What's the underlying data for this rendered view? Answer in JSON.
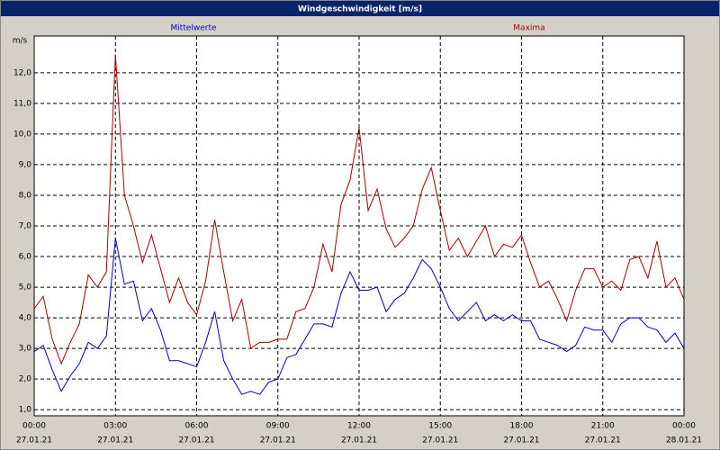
{
  "chart_data": {
    "type": "line",
    "title": "Windgeschwindigkeit [m/s]",
    "y_unit": "m/s",
    "x": [
      0,
      20,
      40,
      60,
      80,
      100,
      120,
      140,
      160,
      180,
      200,
      220,
      240,
      260,
      280,
      300,
      320,
      340,
      360,
      380,
      400,
      420,
      440,
      460,
      480,
      500,
      520,
      540,
      560,
      580,
      600,
      620,
      640,
      660,
      680,
      700,
      720,
      740,
      760,
      780,
      800,
      820,
      840,
      860,
      880,
      900,
      920,
      940,
      960,
      980,
      1000,
      1020,
      1040,
      1060,
      1080,
      1100,
      1120,
      1140,
      1160,
      1180,
      1200,
      1220,
      1240,
      1260,
      1280,
      1300,
      1320,
      1340,
      1360,
      1380,
      1400,
      1420,
      1440
    ],
    "series": [
      {
        "name": "Mittelwerte",
        "color": "#0000cc",
        "values": [
          2.9,
          3.1,
          2.3,
          1.6,
          2.1,
          2.5,
          3.2,
          3.0,
          3.4,
          6.6,
          5.1,
          5.2,
          3.9,
          4.3,
          3.6,
          2.6,
          2.6,
          2.5,
          2.4,
          3.2,
          4.2,
          2.6,
          2.0,
          1.5,
          1.6,
          1.5,
          1.9,
          2.0,
          2.7,
          2.8,
          3.3,
          3.8,
          3.8,
          3.7,
          4.8,
          5.5,
          4.9,
          4.9,
          5.0,
          4.2,
          4.6,
          4.8,
          5.3,
          5.9,
          5.6,
          5.0,
          4.3,
          3.9,
          4.2,
          4.5,
          3.9,
          4.1,
          3.9,
          4.1,
          3.9,
          3.9,
          3.3,
          3.2,
          3.1,
          2.9,
          3.1,
          3.7,
          3.6,
          3.6,
          3.2,
          3.8,
          4.0,
          4.0,
          3.7,
          3.6,
          3.2,
          3.5,
          3.0
        ]
      },
      {
        "name": "Maxima",
        "color": "#aa0000",
        "values": [
          4.3,
          4.7,
          3.3,
          2.5,
          3.2,
          3.8,
          5.4,
          5.0,
          5.5,
          12.6,
          8.0,
          7.0,
          5.8,
          6.7,
          5.6,
          4.5,
          5.3,
          4.5,
          4.1,
          5.2,
          7.2,
          5.5,
          3.9,
          4.6,
          3.0,
          3.2,
          3.2,
          3.3,
          3.3,
          4.2,
          4.3,
          5.0,
          6.4,
          5.5,
          7.7,
          8.5,
          10.2,
          7.5,
          8.2,
          6.9,
          6.3,
          6.6,
          7.0,
          8.2,
          8.9,
          7.5,
          6.2,
          6.6,
          6.0,
          6.5,
          7.0,
          6.0,
          6.4,
          6.3,
          6.7,
          5.8,
          5.0,
          5.2,
          4.6,
          3.9,
          4.9,
          5.6,
          5.6,
          5.0,
          5.2,
          4.9,
          5.9,
          6.0,
          5.3,
          6.5,
          5.0,
          5.3,
          4.6
        ]
      }
    ],
    "xlim": [
      0,
      1440
    ],
    "xticks": [
      {
        "value": 0,
        "label": "00:00",
        "date": "27.01.21"
      },
      {
        "value": 180,
        "label": "03:00",
        "date": "27.01.21"
      },
      {
        "value": 360,
        "label": "06:00",
        "date": "27.01.21"
      },
      {
        "value": 540,
        "label": "09:00",
        "date": "27.01.21"
      },
      {
        "value": 720,
        "label": "12:00",
        "date": "27.01.21"
      },
      {
        "value": 900,
        "label": "15:00",
        "date": "27.01.21"
      },
      {
        "value": 1080,
        "label": "18:00",
        "date": "27.01.21"
      },
      {
        "value": 1260,
        "label": "21:00",
        "date": "27.01.21"
      },
      {
        "value": 1440,
        "label": "00:00",
        "date": "28.01.21"
      }
    ],
    "ylim": [
      0.8,
      13.2
    ],
    "yticks": [
      {
        "value": 1,
        "label": "1,0"
      },
      {
        "value": 2,
        "label": "2,0"
      },
      {
        "value": 3,
        "label": "3,0"
      },
      {
        "value": 4,
        "label": "4,0"
      },
      {
        "value": 5,
        "label": "5,0"
      },
      {
        "value": 6,
        "label": "6,0"
      },
      {
        "value": 7,
        "label": "7,0"
      },
      {
        "value": 8,
        "label": "8,0"
      },
      {
        "value": 9,
        "label": "9,0"
      },
      {
        "value": 10,
        "label": "10,0"
      },
      {
        "value": 11,
        "label": "11,0"
      },
      {
        "value": 12,
        "label": "12,0"
      }
    ],
    "grid": true
  }
}
